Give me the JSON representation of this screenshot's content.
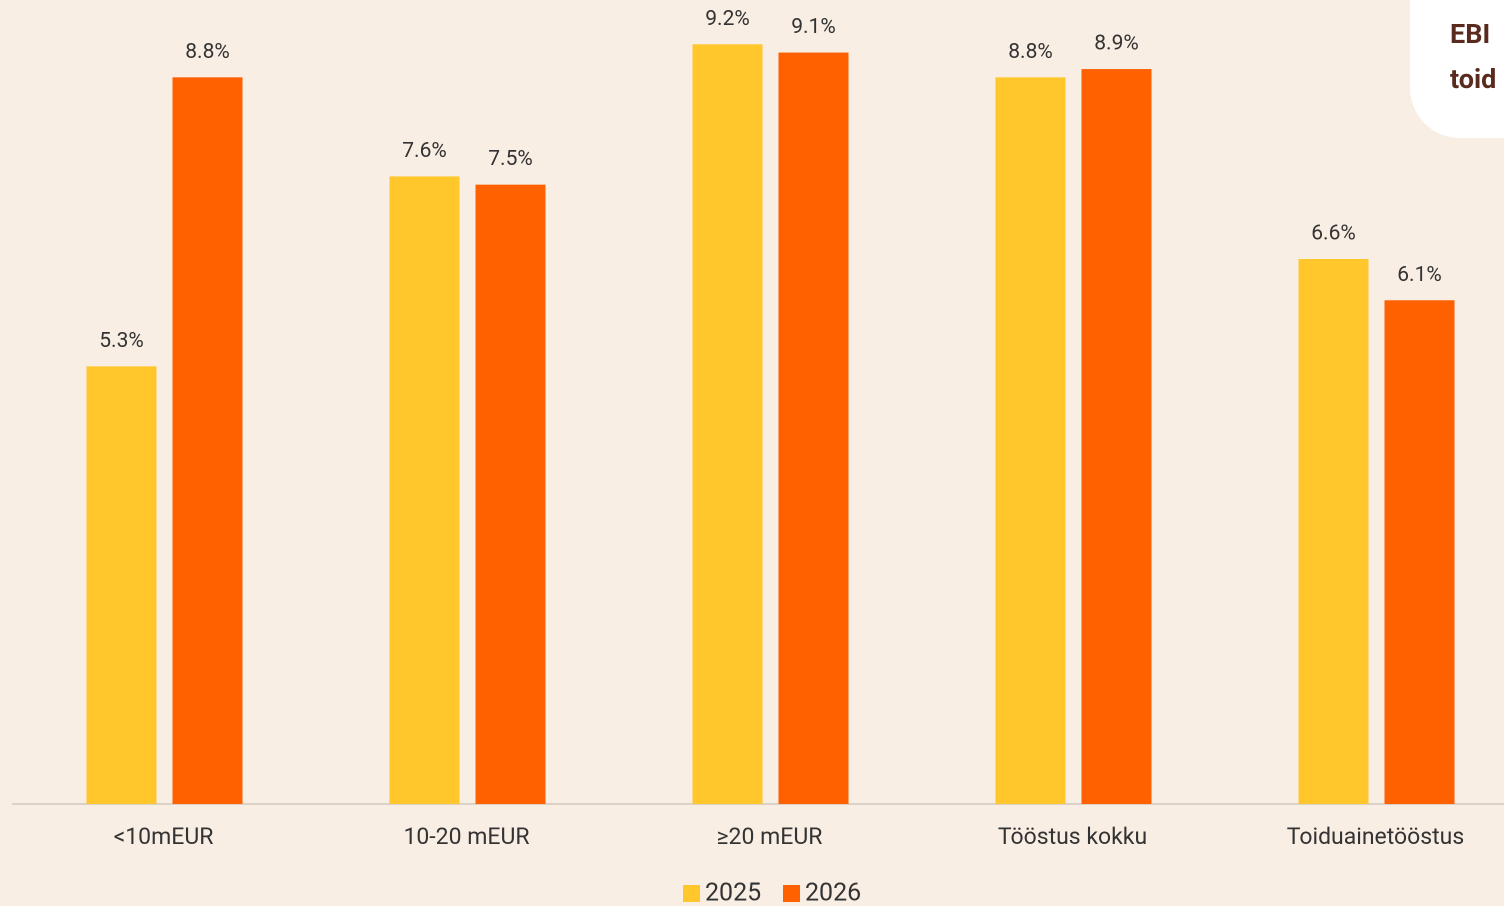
{
  "chart_data": {
    "type": "bar",
    "annotations": [
      "EBI",
      "toid"
    ],
    "categories": [
      "<10mEUR",
      "10-20 mEUR",
      "≥20 mEUR",
      "Tööstus kokku",
      "Toiduainetööstus"
    ],
    "series": [
      {
        "name": "2025",
        "color": "#FFC72C",
        "values": [
          5.3,
          7.6,
          9.2,
          8.8,
          6.6
        ],
        "value_labels": [
          "5.3%",
          "7.6%",
          "9.2%",
          "8.8%",
          "6.6%"
        ]
      },
      {
        "name": "2026",
        "color": "#FF6000",
        "values": [
          8.8,
          7.5,
          9.1,
          8.9,
          6.1
        ],
        "value_labels": [
          "8.8%",
          "7.5%",
          "9.1%",
          "8.9%",
          "6.1%"
        ]
      }
    ],
    "ylim": [
      0,
      9.7
    ],
    "legend": "bottom"
  }
}
